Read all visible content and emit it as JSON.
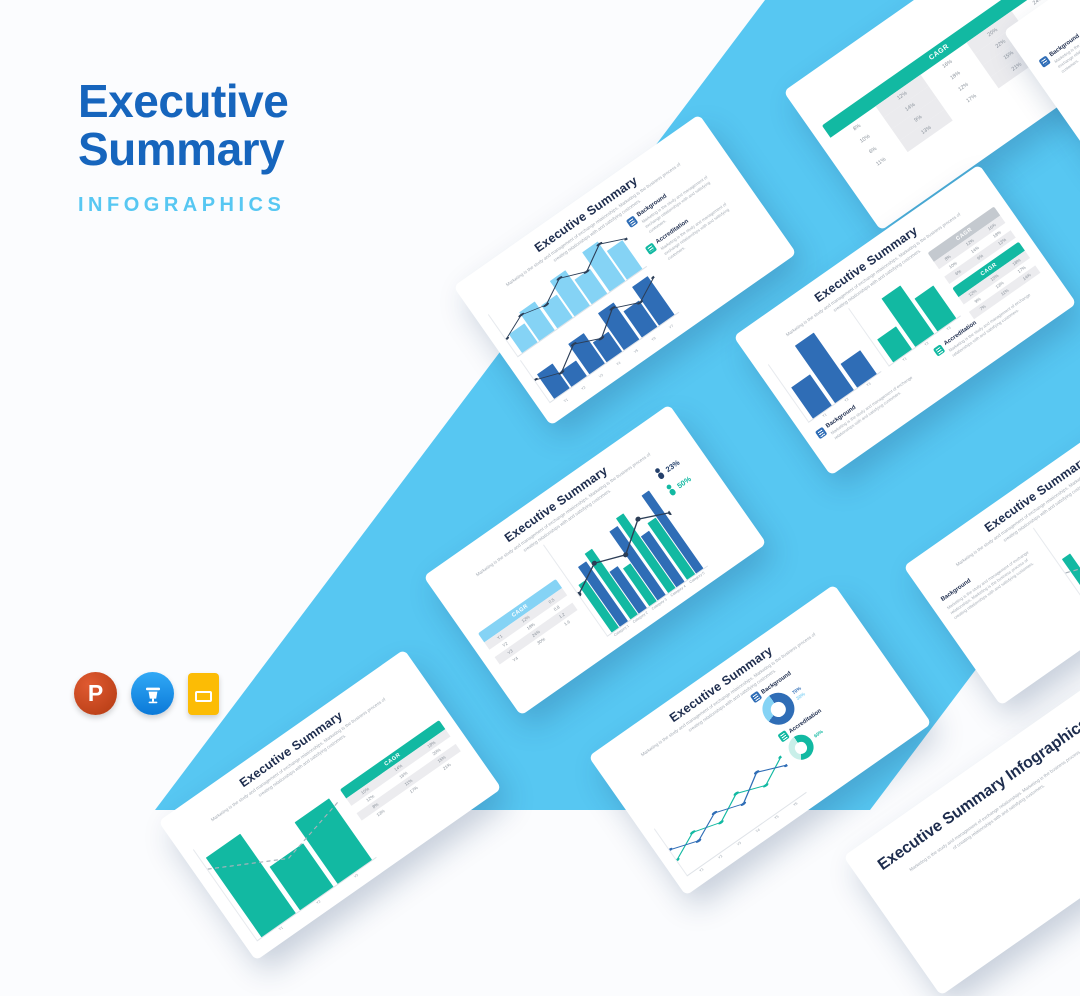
{
  "hero": {
    "title_line1": "Executive",
    "title_line2": "Summary",
    "subtitle": "INFOGRAPHICS",
    "title_color": "#1665bd",
    "accent_color": "#57c7f2"
  },
  "band": {
    "color": "#57c7f2"
  },
  "apps": {
    "powerpoint_letter": "P"
  },
  "palette": {
    "navy": "#1d2c4d",
    "blue_dark": "#2f6db6",
    "blue_light": "#85d3f5",
    "teal": "#12b9a2",
    "gray_text": "#a6adb6"
  },
  "shared": {
    "slide_title": "Executive Summary",
    "slide_body": "Marketing is the study and management of exchange relationships. Marketing is the business process of creating relationships with and satisfying customers.",
    "background_label": "Background",
    "accreditation_label": "Accreditation",
    "block_text": "Marketing is the study and management of exchange relationships with and satisfying customers."
  },
  "cover": {
    "title": "Executive Summary Infographics",
    "body": "Marketing is the study and management of exchange relationships. Marketing is the business process of creating relationships with and satisfying customers."
  },
  "stats": {
    "items": [
      {
        "pct": "23%",
        "color": "#24406b"
      },
      {
        "pct": "50%",
        "color": "#12b9a2"
      }
    ]
  },
  "donut_labels": {
    "blue_main": "70%",
    "blue_sub": "30%",
    "teal_main": "60%"
  },
  "charts": {
    "c_top_bars": {
      "color": "#85d3f5",
      "values": [
        45,
        70,
        55,
        85,
        60,
        95,
        70
      ]
    },
    "c_top_line": {
      "series": [
        {
          "color": "#2c3e57",
          "width": 1.2,
          "dots": true,
          "values": [
            40,
            62,
            50,
            78,
            58,
            88,
            66
          ]
        }
      ]
    },
    "c_bottom_bars": {
      "color": "#2f6db6",
      "values": [
        60,
        38,
        72,
        48,
        88,
        62,
        92
      ]
    },
    "c_bottom_line": {
      "series": [
        {
          "color": "#2c3e57",
          "width": 1.2,
          "dots": true,
          "values": [
            52,
            34,
            66,
            44,
            80,
            58,
            84
          ]
        }
      ]
    },
    "c_xlabels": [
      "Y1",
      "Y2",
      "Y3",
      "Y4",
      "Y5",
      "Y6",
      "Y7"
    ],
    "d_blue_bars": {
      "color": "#2f6db6",
      "values": [
        55,
        100,
        42
      ]
    },
    "d_teal_bars": {
      "color": "#12b9a2",
      "values": [
        40,
        85,
        58
      ]
    },
    "d_x1": [
      "Y1",
      "Y2",
      "Y3"
    ],
    "d_x2": [
      "Y1",
      "Y2",
      "Y3"
    ],
    "e_bars": {
      "series": [
        {
          "color": "#12b9a2",
          "values": [
            62,
            42,
            76,
            52,
            86,
            66
          ]
        },
        {
          "color": "#2f6db6",
          "values": [
            42,
            62,
            48,
            72,
            56,
            82
          ]
        }
      ]
    },
    "e_line": {
      "series": [
        {
          "color": "#aab2bb",
          "width": 1,
          "dash": true,
          "values": [
            50,
            40,
            62,
            48,
            72,
            58
          ]
        }
      ]
    },
    "e_xlabels": [
      "Y1",
      "Y2",
      "Y3",
      "Y4",
      "Y5",
      "Y6"
    ],
    "f_bars": {
      "series": [
        {
          "color": "#12b9a2",
          "values": [
            52,
            72,
            42,
            82,
            62
          ]
        },
        {
          "color": "#2f6db6",
          "values": [
            66,
            46,
            76,
            56,
            86
          ]
        }
      ]
    },
    "f_line": {
      "series": [
        {
          "color": "#2c3e57",
          "width": 1.2,
          "dots": true,
          "values": [
            45,
            60,
            50,
            70,
            58
          ]
        }
      ]
    },
    "f_xlabels": [
      "Category 1",
      "Category 2",
      "Category 3",
      "Category 4",
      "Category 5"
    ],
    "g_line": {
      "series": [
        {
          "color": "#12b9a2",
          "width": 1.4,
          "dots": true,
          "values": [
            32,
            56,
            42,
            68,
            50,
            76
          ]
        },
        {
          "color": "#2f6db6",
          "width": 1.4,
          "dots": true,
          "values": [
            54,
            38,
            62,
            46,
            78,
            58
          ]
        }
      ]
    },
    "g_xlabels": [
      "Y1",
      "Y2",
      "Y3",
      "Y4",
      "Y5",
      "Y6"
    ],
    "g_donut_blue": {
      "segments": [
        70,
        30
      ],
      "colors": [
        "#2f6db6",
        "#85d3f5"
      ]
    },
    "g_donut_teal": {
      "segments": [
        60,
        40
      ],
      "colors": [
        "#12b9a2",
        "#c9efe9"
      ]
    },
    "h_bars": {
      "color": "#12b9a2",
      "values": [
        88,
        48,
        68
      ]
    },
    "h_line": {
      "series": [
        {
          "color": "#aab2bb",
          "width": 1,
          "dash": true,
          "values": [
            78,
            44,
            60
          ]
        }
      ]
    },
    "h_xlabels": [
      "Y1",
      "Y2",
      "Y3"
    ]
  },
  "tables": {
    "a": {
      "header": "CAGR",
      "rows": [
        [
          "8%",
          "12%",
          "16%",
          "20%",
          "24%"
        ],
        [
          "10%",
          "14%",
          "18%",
          "22%",
          "26%"
        ],
        [
          "6%",
          "9%",
          "12%",
          "15%",
          "18%"
        ],
        [
          "11%",
          "13%",
          "17%",
          "21%",
          "25%"
        ]
      ]
    },
    "d1": {
      "header": "CAGR",
      "rows": [
        [
          "8%",
          "12%",
          "16%"
        ],
        [
          "10%",
          "14%",
          "18%"
        ],
        [
          "6%",
          "9%",
          "13%"
        ]
      ]
    },
    "d2": {
      "header": "CAGR",
      "rows": [
        [
          "12%",
          "15%",
          "18%"
        ],
        [
          "9%",
          "13%",
          "17%"
        ],
        [
          "7%",
          "11%",
          "14%"
        ]
      ]
    },
    "f": {
      "header": "CAGR",
      "rows": [
        [
          "Y1",
          "12%",
          "0.5"
        ],
        [
          "Y2",
          "18%",
          "0.8"
        ],
        [
          "Y3",
          "24%",
          "1.2"
        ],
        [
          "Y4",
          "30%",
          "1.6"
        ]
      ]
    },
    "h": {
      "header": "CAGR",
      "rows": [
        [
          "10%",
          "14%",
          "18%"
        ],
        [
          "12%",
          "16%",
          "20%"
        ],
        [
          "8%",
          "11%",
          "15%"
        ],
        [
          "13%",
          "17%",
          "21%"
        ]
      ]
    }
  }
}
